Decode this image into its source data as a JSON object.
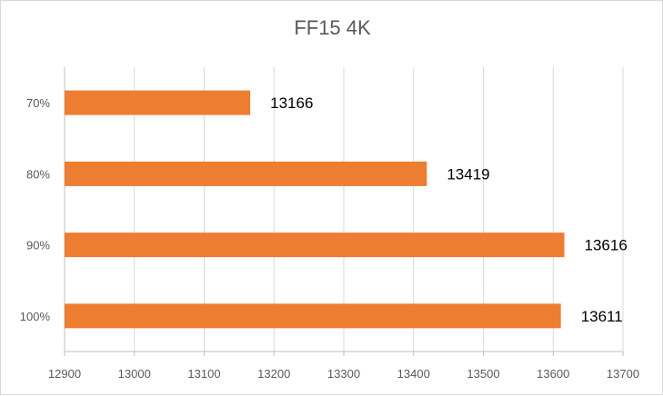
{
  "chart_data": {
    "type": "bar",
    "orientation": "horizontal",
    "title": "FF15 4K",
    "categories": [
      "70%",
      "80%",
      "90%",
      "100%"
    ],
    "values": [
      13166,
      13419,
      13616,
      13611
    ],
    "xlim": [
      12900,
      13700
    ],
    "xticks": [
      12900,
      13000,
      13100,
      13200,
      13300,
      13400,
      13500,
      13600,
      13700
    ],
    "grid": true,
    "legend": "none",
    "bar_color": "#ED7D31"
  }
}
